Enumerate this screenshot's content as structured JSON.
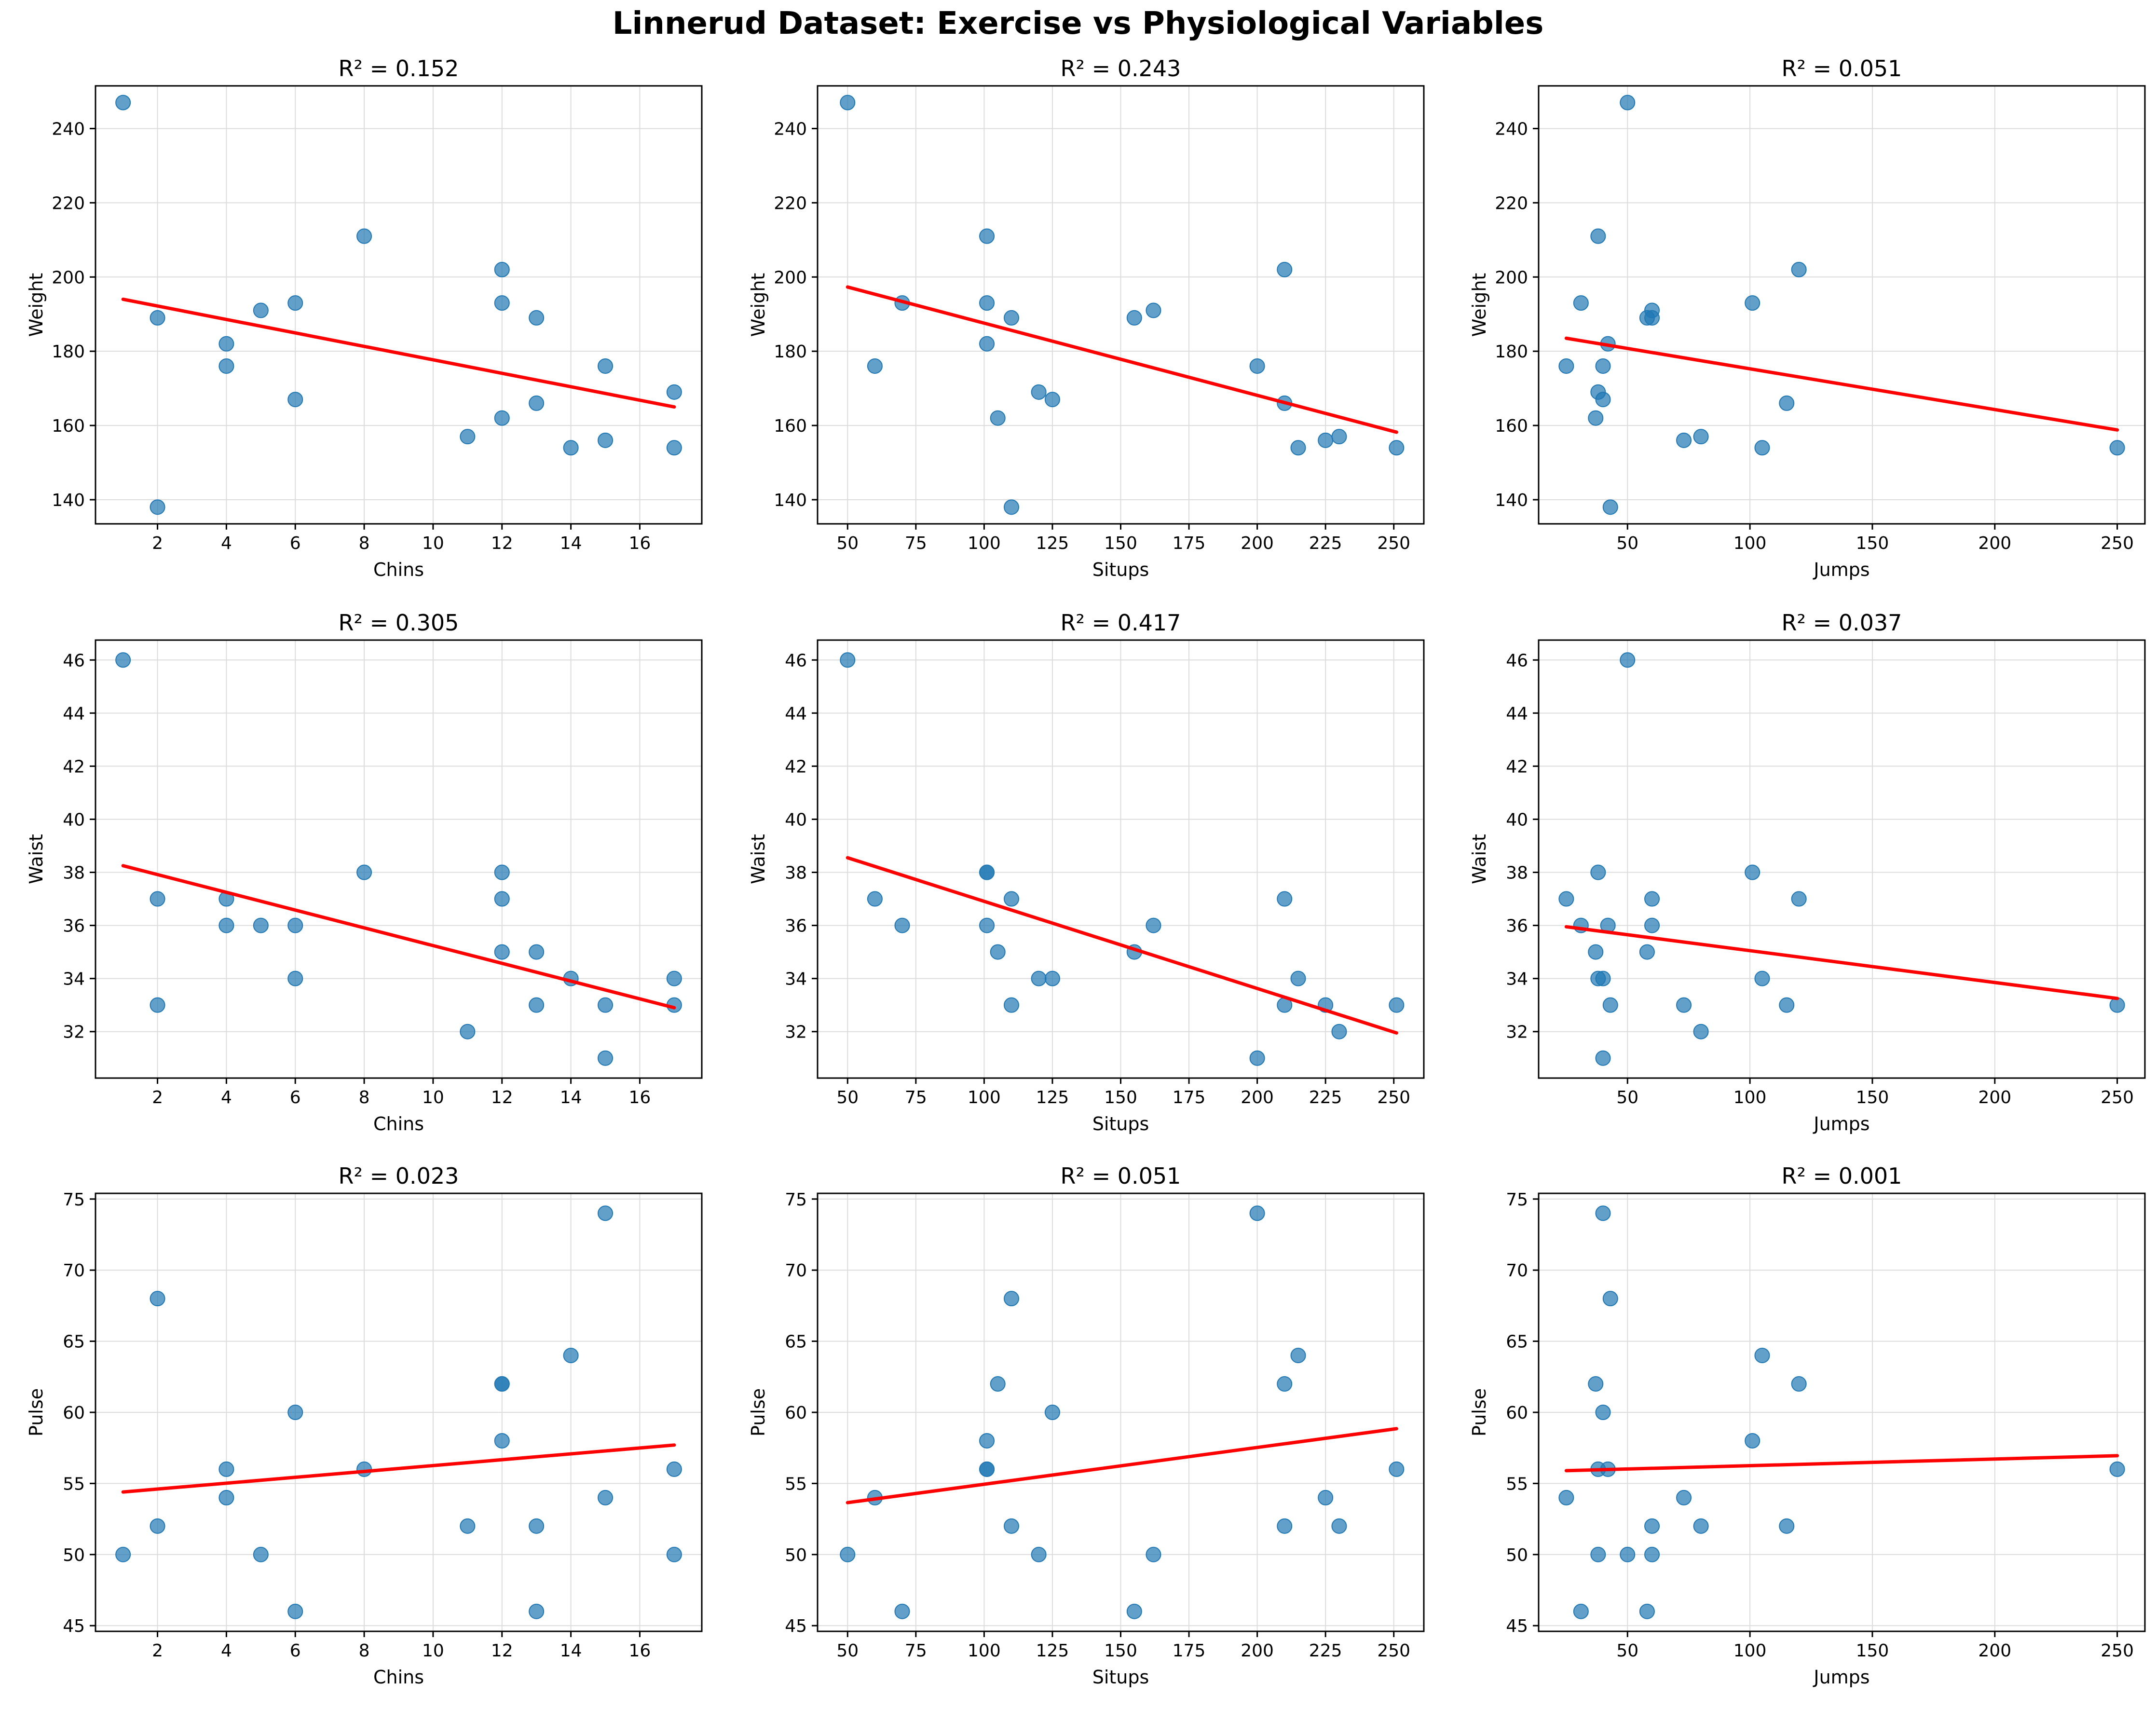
{
  "title": "Linnerud Dataset: Exercise vs Physiological Variables",
  "colors": {
    "points": "#1f77b4",
    "fit_line": "#ff0000",
    "grid": "#dcdcdc",
    "axes": "#000000"
  },
  "chart_data": [
    {
      "type": "scatter",
      "title": "R² = 0.152",
      "xlabel": "Chins",
      "ylabel": "Weight",
      "xlim": [
        0.2,
        17.8
      ],
      "ylim": [
        133.5,
        251.5
      ],
      "xticks": [
        2,
        4,
        6,
        8,
        10,
        12,
        14,
        16
      ],
      "yticks": [
        140,
        160,
        180,
        200,
        220,
        240
      ],
      "grid": true,
      "x": [
        5,
        2,
        12,
        12,
        13,
        4,
        8,
        6,
        15,
        17,
        17,
        13,
        14,
        1,
        6,
        12,
        4,
        11,
        15,
        2
      ],
      "y": [
        191,
        189,
        193,
        162,
        189,
        182,
        211,
        167,
        176,
        154,
        169,
        166,
        154,
        247,
        193,
        202,
        176,
        157,
        156,
        138
      ],
      "fit": {
        "x": [
          1,
          17
        ],
        "y": [
          194,
          165
        ]
      }
    },
    {
      "type": "scatter",
      "title": "R² = 0.243",
      "xlabel": "Situps",
      "ylabel": "Weight",
      "xlim": [
        39,
        261
      ],
      "ylim": [
        133.5,
        251.5
      ],
      "xticks": [
        50,
        75,
        100,
        125,
        150,
        175,
        200,
        225,
        250
      ],
      "yticks": [
        140,
        160,
        180,
        200,
        220,
        240
      ],
      "grid": true,
      "x": [
        162,
        110,
        101,
        105,
        155,
        101,
        101,
        125,
        200,
        251,
        120,
        210,
        215,
        50,
        70,
        210,
        60,
        230,
        225,
        110
      ],
      "y": [
        191,
        189,
        193,
        162,
        189,
        182,
        211,
        167,
        176,
        154,
        169,
        166,
        154,
        247,
        193,
        202,
        176,
        157,
        156,
        138
      ],
      "fit": {
        "x": [
          50,
          251
        ],
        "y": [
          197.3,
          158.2
        ]
      }
    },
    {
      "type": "scatter",
      "title": "R² = 0.051",
      "xlabel": "Jumps",
      "ylabel": "Weight",
      "xlim": [
        13.7,
        261.3
      ],
      "ylim": [
        133.5,
        251.5
      ],
      "xticks": [
        50,
        100,
        150,
        200,
        250
      ],
      "yticks": [
        140,
        160,
        180,
        200,
        220,
        240
      ],
      "grid": true,
      "x": [
        60,
        60,
        101,
        37,
        58,
        42,
        38,
        40,
        40,
        250,
        38,
        115,
        105,
        50,
        31,
        120,
        25,
        80,
        73,
        43
      ],
      "y": [
        191,
        189,
        193,
        162,
        189,
        182,
        211,
        167,
        176,
        154,
        169,
        166,
        154,
        247,
        193,
        202,
        176,
        157,
        156,
        138
      ],
      "fit": {
        "x": [
          25,
          250
        ],
        "y": [
          183.5,
          158.8
        ]
      }
    },
    {
      "type": "scatter",
      "title": "R² = 0.305",
      "xlabel": "Chins",
      "ylabel": "Waist",
      "xlim": [
        0.2,
        17.8
      ],
      "ylim": [
        30.25,
        46.75
      ],
      "xticks": [
        2,
        4,
        6,
        8,
        10,
        12,
        14,
        16
      ],
      "yticks": [
        32,
        34,
        36,
        38,
        40,
        42,
        44,
        46
      ],
      "grid": true,
      "x": [
        5,
        2,
        12,
        12,
        13,
        4,
        8,
        6,
        15,
        17,
        17,
        13,
        14,
        1,
        6,
        12,
        4,
        11,
        15,
        2
      ],
      "y": [
        36,
        37,
        38,
        35,
        35,
        36,
        38,
        34,
        31,
        33,
        34,
        33,
        34,
        46,
        36,
        37,
        37,
        32,
        33,
        33
      ],
      "fit": {
        "x": [
          1,
          17
        ],
        "y": [
          38.25,
          32.9
        ]
      }
    },
    {
      "type": "scatter",
      "title": "R² = 0.417",
      "xlabel": "Situps",
      "ylabel": "Waist",
      "xlim": [
        39,
        261
      ],
      "ylim": [
        30.25,
        46.75
      ],
      "xticks": [
        50,
        75,
        100,
        125,
        150,
        175,
        200,
        225,
        250
      ],
      "yticks": [
        32,
        34,
        36,
        38,
        40,
        42,
        44,
        46
      ],
      "grid": true,
      "x": [
        162,
        110,
        101,
        105,
        155,
        101,
        101,
        125,
        200,
        251,
        120,
        210,
        215,
        50,
        70,
        210,
        60,
        230,
        225,
        110
      ],
      "y": [
        36,
        37,
        38,
        35,
        35,
        36,
        38,
        34,
        31,
        33,
        34,
        33,
        34,
        46,
        36,
        37,
        37,
        32,
        33,
        33
      ],
      "fit": {
        "x": [
          50,
          251
        ],
        "y": [
          38.55,
          31.95
        ]
      }
    },
    {
      "type": "scatter",
      "title": "R² = 0.037",
      "xlabel": "Jumps",
      "ylabel": "Waist",
      "xlim": [
        13.7,
        261.3
      ],
      "ylim": [
        30.25,
        46.75
      ],
      "xticks": [
        50,
        100,
        150,
        200,
        250
      ],
      "yticks": [
        32,
        34,
        36,
        38,
        40,
        42,
        44,
        46
      ],
      "grid": true,
      "x": [
        60,
        60,
        101,
        37,
        58,
        42,
        38,
        40,
        40,
        250,
        38,
        115,
        105,
        50,
        31,
        120,
        25,
        80,
        73,
        43
      ],
      "y": [
        36,
        37,
        38,
        35,
        35,
        36,
        38,
        34,
        31,
        33,
        34,
        33,
        34,
        46,
        36,
        37,
        37,
        32,
        33,
        33
      ],
      "fit": {
        "x": [
          25,
          250
        ],
        "y": [
          35.95,
          33.25
        ]
      }
    },
    {
      "type": "scatter",
      "title": "R² = 0.023",
      "xlabel": "Chins",
      "ylabel": "Pulse",
      "xlim": [
        0.2,
        17.8
      ],
      "ylim": [
        44.6,
        75.4
      ],
      "xticks": [
        2,
        4,
        6,
        8,
        10,
        12,
        14,
        16
      ],
      "yticks": [
        45,
        50,
        55,
        60,
        65,
        70,
        75
      ],
      "grid": true,
      "x": [
        5,
        2,
        12,
        12,
        13,
        4,
        8,
        6,
        15,
        17,
        17,
        13,
        14,
        1,
        6,
        12,
        4,
        11,
        15,
        2
      ],
      "y": [
        50,
        52,
        58,
        62,
        46,
        56,
        56,
        60,
        74,
        56,
        50,
        52,
        64,
        50,
        46,
        62,
        54,
        52,
        54,
        68
      ],
      "fit": {
        "x": [
          1,
          17
        ],
        "y": [
          54.4,
          57.7
        ]
      }
    },
    {
      "type": "scatter",
      "title": "R² = 0.051",
      "xlabel": "Situps",
      "ylabel": "Pulse",
      "xlim": [
        39,
        261
      ],
      "ylim": [
        44.6,
        75.4
      ],
      "xticks": [
        50,
        75,
        100,
        125,
        150,
        175,
        200,
        225,
        250
      ],
      "yticks": [
        45,
        50,
        55,
        60,
        65,
        70,
        75
      ],
      "grid": true,
      "x": [
        162,
        110,
        101,
        105,
        155,
        101,
        101,
        125,
        200,
        251,
        120,
        210,
        215,
        50,
        70,
        210,
        60,
        230,
        225,
        110
      ],
      "y": [
        50,
        52,
        58,
        62,
        46,
        56,
        56,
        60,
        74,
        56,
        50,
        52,
        64,
        50,
        46,
        62,
        54,
        52,
        54,
        68
      ],
      "fit": {
        "x": [
          50,
          251
        ],
        "y": [
          53.65,
          58.85
        ]
      }
    },
    {
      "type": "scatter",
      "title": "R² = 0.001",
      "xlabel": "Jumps",
      "ylabel": "Pulse",
      "xlim": [
        13.7,
        261.3
      ],
      "ylim": [
        44.6,
        75.4
      ],
      "xticks": [
        50,
        100,
        150,
        200,
        250
      ],
      "yticks": [
        45,
        50,
        55,
        60,
        65,
        70,
        75
      ],
      "grid": true,
      "x": [
        60,
        60,
        101,
        37,
        58,
        42,
        38,
        40,
        40,
        250,
        38,
        115,
        105,
        50,
        31,
        120,
        25,
        80,
        73,
        43
      ],
      "y": [
        50,
        52,
        58,
        62,
        46,
        56,
        56,
        60,
        74,
        56,
        50,
        52,
        64,
        50,
        46,
        62,
        54,
        52,
        54,
        68
      ],
      "fit": {
        "x": [
          25,
          250
        ],
        "y": [
          55.9,
          56.95
        ]
      }
    }
  ]
}
